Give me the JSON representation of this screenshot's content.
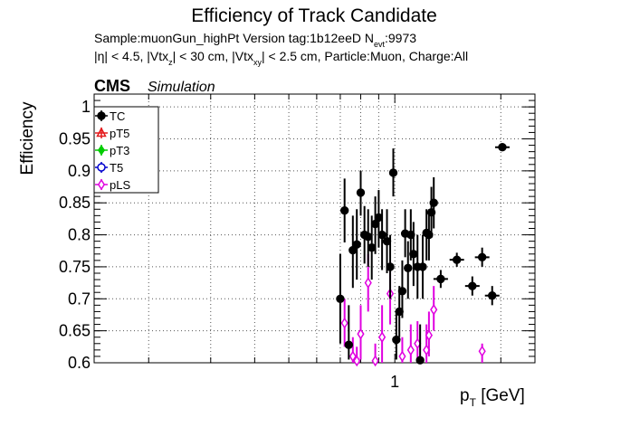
{
  "header": {
    "title": "Efficiency of Track Candidate",
    "line1_main": "Sample:muonGun_highPt   Version tag:1b12eeD  N",
    "line1_sub": "evt",
    "line1_tail": ":9973",
    "line2_a": "|η| < 4.5, |Vtx",
    "line2_sub1": "z",
    "line2_b": "| < 30 cm, |Vtx",
    "line2_sub2": "xy",
    "line2_c": "| < 2.5 cm, Particle:Muon, Charge:All",
    "cms": "CMS",
    "simulation": "Simulation"
  },
  "colors": {
    "TC": "#000000",
    "pT5": "#e41a1c",
    "pT3": "#00cc00",
    "T5": "#0000cc",
    "pLS": "#e000e0",
    "grid": "#555555"
  },
  "chart_data": {
    "type": "scatter",
    "xlabel": "p",
    "xlabel_sub": "T",
    "xlabel_unit": " [GeV]",
    "ylabel": "Efficiency",
    "x_scale": "log",
    "xlim": [
      0.14,
      2.5
    ],
    "ylim": [
      0.6,
      1.02
    ],
    "xticks": [
      {
        "v": 1,
        "label": "1"
      }
    ],
    "yticks": [
      {
        "v": 0.6,
        "label": "0.6"
      },
      {
        "v": 0.65,
        "label": "0.65"
      },
      {
        "v": 0.7,
        "label": "0.7"
      },
      {
        "v": 0.75,
        "label": "0.75"
      },
      {
        "v": 0.8,
        "label": "0.8"
      },
      {
        "v": 0.85,
        "label": "0.85"
      },
      {
        "v": 0.9,
        "label": "0.9"
      },
      {
        "v": 0.95,
        "label": "0.95"
      },
      {
        "v": 1,
        "label": "1"
      }
    ],
    "grid": true,
    "legend_position": "top-left",
    "series": [
      {
        "name": "TC",
        "marker": "filled-circle",
        "points": [
          {
            "x": 0.7,
            "y": 0.7,
            "ylo": 0.63,
            "yhi": 0.77
          },
          {
            "x": 0.72,
            "y": 0.838,
            "ylo": 0.788,
            "yhi": 0.888
          },
          {
            "x": 0.74,
            "y": 0.628,
            "ylo": 0.605,
            "yhi": 0.69
          },
          {
            "x": 0.76,
            "y": 0.776,
            "ylo": 0.717,
            "yhi": 0.83
          },
          {
            "x": 0.78,
            "y": 0.785,
            "ylo": 0.73,
            "yhi": 0.84
          },
          {
            "x": 0.8,
            "y": 0.866,
            "ylo": 0.83,
            "yhi": 0.9
          },
          {
            "x": 0.82,
            "y": 0.8,
            "ylo": 0.755,
            "yhi": 0.845
          },
          {
            "x": 0.84,
            "y": 0.797,
            "ylo": 0.75,
            "yhi": 0.84
          },
          {
            "x": 0.86,
            "y": 0.78,
            "ylo": 0.73,
            "yhi": 0.83
          },
          {
            "x": 0.88,
            "y": 0.817,
            "ylo": 0.77,
            "yhi": 0.86
          },
          {
            "x": 0.9,
            "y": 0.827,
            "ylo": 0.78,
            "yhi": 0.87
          },
          {
            "x": 0.92,
            "y": 0.8,
            "ylo": 0.745,
            "yhi": 0.84
          },
          {
            "x": 0.95,
            "y": 0.79,
            "ylo": 0.74,
            "yhi": 0.84
          },
          {
            "x": 0.97,
            "y": 0.75,
            "ylo": 0.7,
            "yhi": 0.8
          },
          {
            "x": 0.99,
            "y": 0.897,
            "ylo": 0.86,
            "yhi": 0.935
          },
          {
            "x": 1.01,
            "y": 0.636,
            "ylo": 0.605,
            "yhi": 0.68
          },
          {
            "x": 1.03,
            "y": 0.68,
            "ylo": 0.64,
            "yhi": 0.72
          },
          {
            "x": 1.05,
            "y": 0.712,
            "ylo": 0.67,
            "yhi": 0.76
          },
          {
            "x": 1.07,
            "y": 0.802,
            "ylo": 0.765,
            "yhi": 0.84
          },
          {
            "x": 1.09,
            "y": 0.748,
            "ylo": 0.7,
            "yhi": 0.79
          },
          {
            "x": 1.11,
            "y": 0.8,
            "ylo": 0.76,
            "yhi": 0.84
          },
          {
            "x": 1.13,
            "y": 0.77,
            "ylo": 0.72,
            "yhi": 0.82
          },
          {
            "x": 1.16,
            "y": 0.75,
            "ylo": 0.7,
            "yhi": 0.8
          },
          {
            "x": 1.18,
            "y": 0.604,
            "ylo": 0.6,
            "yhi": 0.66
          },
          {
            "x": 1.2,
            "y": 0.75,
            "ylo": 0.7,
            "yhi": 0.8
          },
          {
            "x": 1.23,
            "y": 0.803,
            "ylo": 0.76,
            "yhi": 0.84
          },
          {
            "x": 1.25,
            "y": 0.8,
            "ylo": 0.76,
            "yhi": 0.84
          },
          {
            "x": 1.27,
            "y": 0.835,
            "ylo": 0.795,
            "yhi": 0.875
          },
          {
            "x": 1.29,
            "y": 0.85,
            "ylo": 0.81,
            "yhi": 0.89
          },
          {
            "x": 1.35,
            "y": 0.731,
            "ylo": 0.717,
            "yhi": 0.745
          },
          {
            "x": 1.5,
            "y": 0.761,
            "ylo": 0.75,
            "yhi": 0.772
          },
          {
            "x": 1.66,
            "y": 0.72,
            "ylo": 0.705,
            "yhi": 0.735
          },
          {
            "x": 1.77,
            "y": 0.765,
            "ylo": 0.75,
            "yhi": 0.78
          },
          {
            "x": 1.89,
            "y": 0.705,
            "ylo": 0.69,
            "yhi": 0.72
          },
          {
            "x": 2.02,
            "y": 0.937,
            "ylo": 0.932,
            "yhi": 0.942
          }
        ]
      },
      {
        "name": "pT5",
        "marker": "open-triangle",
        "points": []
      },
      {
        "name": "pT3",
        "marker": "filled-diamond",
        "points": []
      },
      {
        "name": "T5",
        "marker": "open-circle",
        "points": []
      },
      {
        "name": "pLS",
        "marker": "open-diamond",
        "points": [
          {
            "x": 0.72,
            "y": 0.662,
            "ylo": 0.625,
            "yhi": 0.7
          },
          {
            "x": 0.76,
            "y": 0.61,
            "ylo": 0.6,
            "yhi": 0.64
          },
          {
            "x": 0.78,
            "y": 0.603,
            "ylo": 0.6,
            "yhi": 0.625
          },
          {
            "x": 0.8,
            "y": 0.645,
            "ylo": 0.605,
            "yhi": 0.69
          },
          {
            "x": 0.84,
            "y": 0.725,
            "ylo": 0.68,
            "yhi": 0.77
          },
          {
            "x": 0.88,
            "y": 0.603,
            "ylo": 0.6,
            "yhi": 0.63
          },
          {
            "x": 0.92,
            "y": 0.64,
            "ylo": 0.6,
            "yhi": 0.69
          },
          {
            "x": 0.97,
            "y": 0.708,
            "ylo": 0.66,
            "yhi": 0.76
          },
          {
            "x": 1.05,
            "y": 0.61,
            "ylo": 0.6,
            "yhi": 0.64
          },
          {
            "x": 1.11,
            "y": 0.62,
            "ylo": 0.6,
            "yhi": 0.66
          },
          {
            "x": 1.16,
            "y": 0.63,
            "ylo": 0.605,
            "yhi": 0.665
          },
          {
            "x": 1.23,
            "y": 0.62,
            "ylo": 0.6,
            "yhi": 0.66
          },
          {
            "x": 1.25,
            "y": 0.643,
            "ylo": 0.61,
            "yhi": 0.68
          },
          {
            "x": 1.29,
            "y": 0.683,
            "ylo": 0.65,
            "yhi": 0.72
          },
          {
            "x": 1.77,
            "y": 0.618,
            "ylo": 0.6,
            "yhi": 0.63
          }
        ]
      }
    ]
  }
}
